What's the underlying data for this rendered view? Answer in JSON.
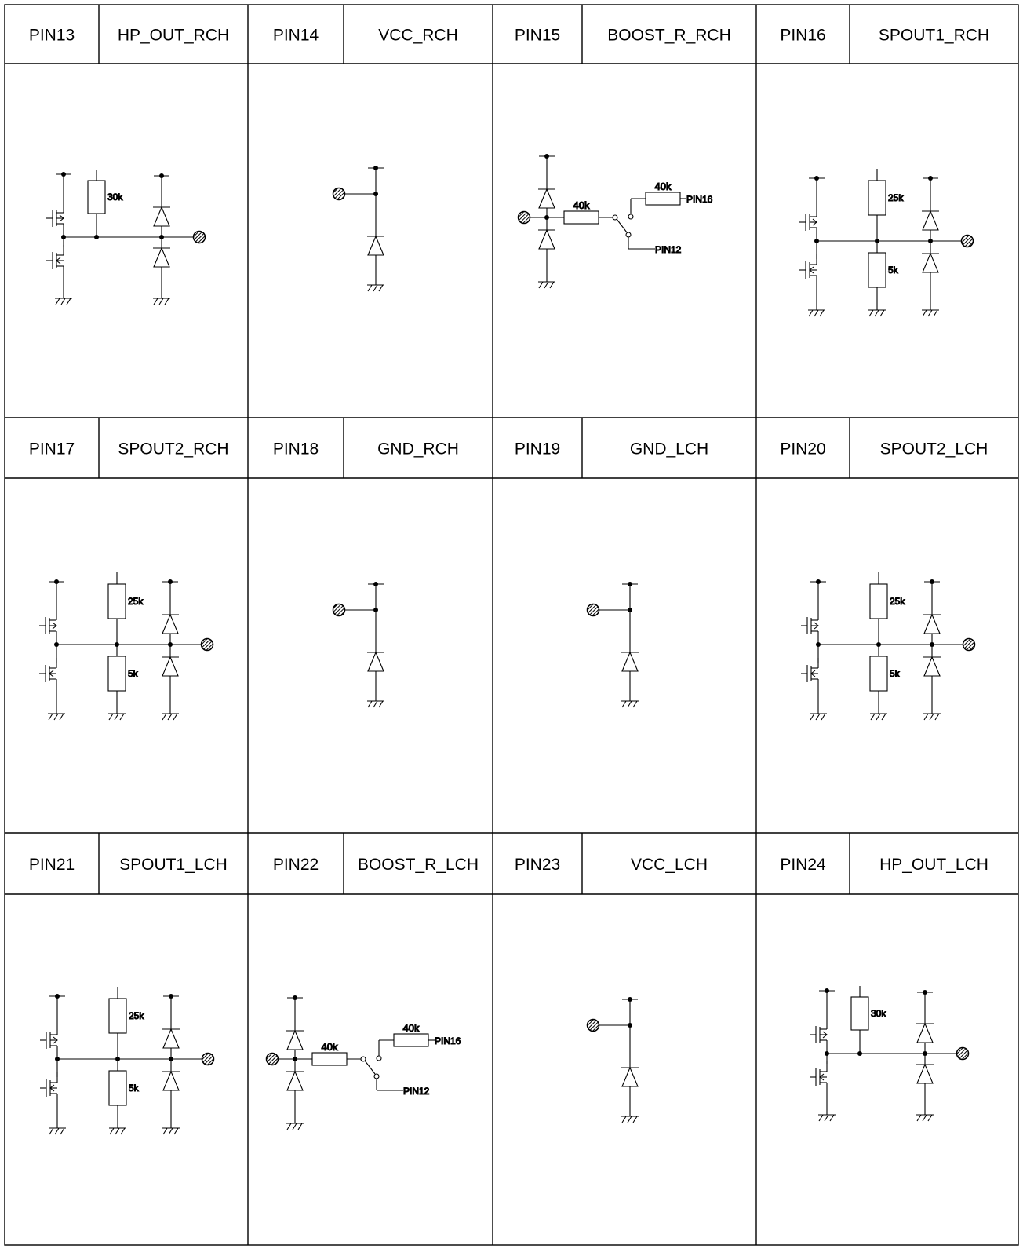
{
  "rows": [
    {
      "cells": [
        {
          "pin": "PIN13",
          "name": "HP_OUT_RCH",
          "circuit": "hp-out"
        },
        {
          "pin": "PIN14",
          "name": "VCC_RCH",
          "circuit": "vcc"
        },
        {
          "pin": "PIN15",
          "name": "BOOST_R_RCH",
          "circuit": "boost"
        },
        {
          "pin": "PIN16",
          "name": "SPOUT1_RCH",
          "circuit": "spout"
        }
      ]
    },
    {
      "cells": [
        {
          "pin": "PIN17",
          "name": "SPOUT2_RCH",
          "circuit": "spout"
        },
        {
          "pin": "PIN18",
          "name": "GND_RCH",
          "circuit": "gnd"
        },
        {
          "pin": "PIN19",
          "name": "GND_LCH",
          "circuit": "gnd"
        },
        {
          "pin": "PIN20",
          "name": "SPOUT2_LCH",
          "circuit": "spout"
        }
      ]
    },
    {
      "cells": [
        {
          "pin": "PIN21",
          "name": "SPOUT1_LCH",
          "circuit": "spout"
        },
        {
          "pin": "PIN22",
          "name": "BOOST_R_LCH",
          "circuit": "boost"
        },
        {
          "pin": "PIN23",
          "name": "VCC_LCH",
          "circuit": "vcc"
        },
        {
          "pin": "PIN24",
          "name": "HP_OUT_LCH",
          "circuit": "hp-out"
        }
      ]
    }
  ],
  "labels": {
    "r30k": "30k",
    "r25k": "25k",
    "r5k": "5k",
    "r40k": "40k",
    "pin16": "PIN16",
    "pin12": "PIN12"
  }
}
